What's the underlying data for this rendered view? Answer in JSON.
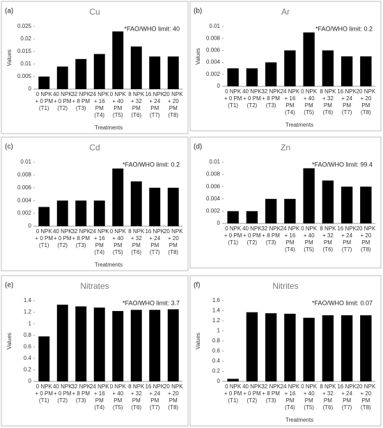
{
  "chart_data": [
    {
      "type": "bar",
      "panel_label": "(a)",
      "title": "Cu",
      "annotation": "*FAO/WHO limit: 40",
      "y_label": "Values",
      "x_label": "Treatments",
      "categories": [
        "0 NPK + 0 PM (T1)",
        "40 NPK + 0 PM (T2)",
        "32 NPK + 8 PM (T3)",
        "24 NPK + 16 PM (T4)",
        "0 NPK + 40 PM (T5)",
        "8 NPK + 32 PM (T6)",
        "16 NPK + 24 PM (T7)",
        "20 NPK + 20 PM (T8)"
      ],
      "values": [
        0.005,
        0.009,
        0.012,
        0.014,
        0.023,
        0.017,
        0.013,
        0.013
      ],
      "color": "#000000",
      "ylim": [
        0,
        0.025
      ],
      "yticks": [
        0,
        0.005,
        0.01,
        0.015,
        0.02,
        0.025
      ]
    },
    {
      "type": "bar",
      "panel_label": "(b)",
      "title": "Ar",
      "annotation": "*FAO/WHO limit: 0.2",
      "y_label": "Values",
      "x_label": "Treatments",
      "categories": [
        "0 NPK + 0 PM (T1)",
        "40 NPK + 0 PM (T2)",
        "32 NPK + 8 PM (T3)",
        "24 NPK + 16 PM (T4)",
        "0 NPK + 40 PM (T5)",
        "8 NPK + 32 PM (T6)",
        "16 NPK + 24 PM (T7)",
        "20 NPK + 20 PM (T8)"
      ],
      "values": [
        0.003,
        0.003,
        0.004,
        0.006,
        0.009,
        0.006,
        0.005,
        0.005
      ],
      "color": "#000000",
      "ylim": [
        0,
        0.01
      ],
      "yticks": [
        0,
        0.002,
        0.004,
        0.006,
        0.008,
        0.01
      ]
    },
    {
      "type": "bar",
      "panel_label": "(c)",
      "title": "Cd",
      "annotation": "*FAO/WHO limit: 0.2",
      "x_label": "Treatments",
      "categories": [
        "0 NPK + 0 PM (T1)",
        "40 NPK + 0 PM (T2)",
        "32 NPK + 8 PM (T3)",
        "24 NPK + 16 PM (T4)",
        "0 NPK + 40 PM (T5)",
        "8 NPK + 32 PM (T6)",
        "16 NPK + 24 PM (T7)",
        "20 NPK + 20 PM (T8)"
      ],
      "values": [
        0.003,
        0.004,
        0.004,
        0.004,
        0.009,
        0.007,
        0.006,
        0.006
      ],
      "color": "#000000",
      "ylim": [
        0,
        0.01
      ],
      "yticks": [
        0,
        0.002,
        0.004,
        0.006,
        0.008,
        0.01
      ]
    },
    {
      "type": "bar",
      "panel_label": "(d)",
      "title": "Zn",
      "annotation": "*FAO/WHO limit: 99.4",
      "categories": [
        "0 NPK + 0 PM (T1)",
        "40 NPK + 0 PM (T2)",
        "32 NPK + 8 PM (T3)",
        "24 NPK + 16 PM (T4)",
        "0 NPK + 40 PM (T5)",
        "8 NPK + 32 PM (T6)",
        "16 NPK + 24 PM (T7)",
        "20 NPK + 20 PM (T8)"
      ],
      "values": [
        0.002,
        0.002,
        0.004,
        0.004,
        0.009,
        0.007,
        0.006,
        0.006
      ],
      "color": "#000000",
      "ylim": [
        0,
        0.01
      ],
      "yticks": [
        0,
        0.002,
        0.004,
        0.006,
        0.008,
        0.01
      ]
    },
    {
      "type": "bar",
      "panel_label": "(e)",
      "title": "Nitrates",
      "annotation": "*FAO/WHO limit: 3.7",
      "y_label": "Values",
      "categories": [
        "0 NPK + 0 PM (T1)",
        "40 NPK + 0 PM (T2)",
        "32 NPK + 8 PM (T3)",
        "24 NPK + 16 PM (T4)",
        "0 NPK + 40 PM (T5)",
        "8 NPK + 32 PM (T6)",
        "16 NPK + 24 PM (T7)",
        "20 NPK + 20 PM (T8)"
      ],
      "values": [
        0.78,
        1.33,
        1.3,
        1.28,
        1.22,
        1.24,
        1.24,
        1.25
      ],
      "color": "#000000",
      "ylim": [
        0,
        1.4
      ],
      "yticks": [
        0,
        0.2,
        0.4,
        0.6,
        0.8,
        1,
        1.2,
        1.4
      ]
    },
    {
      "type": "bar",
      "panel_label": "(f)",
      "title": "Nitrites",
      "annotation": "*FAO/WHO limit: 0.07",
      "y_label": "Values",
      "x_label": "Treatments",
      "categories": [
        "0 NPK + 0 PM (T1)",
        "40 NPK + 0 PM (T2)",
        "32 NPK + 8 PM (T3)",
        "24 NPK + 16 PM (T4)",
        "0 NPK + 40 PM (T5)",
        "8 NPK + 32 PM (T6)",
        "16 NPK + 24 PM (T7)",
        "20 NPK + 20 PM (T8)"
      ],
      "values": [
        0.05,
        1.37,
        1.35,
        1.34,
        1.26,
        1.31,
        1.31,
        1.31
      ],
      "color": "#000000",
      "ylim": [
        0,
        1.6
      ],
      "yticks": [
        0,
        0.2,
        0.4,
        0.6,
        0.8,
        1,
        1.2,
        1.4,
        1.6
      ]
    }
  ]
}
